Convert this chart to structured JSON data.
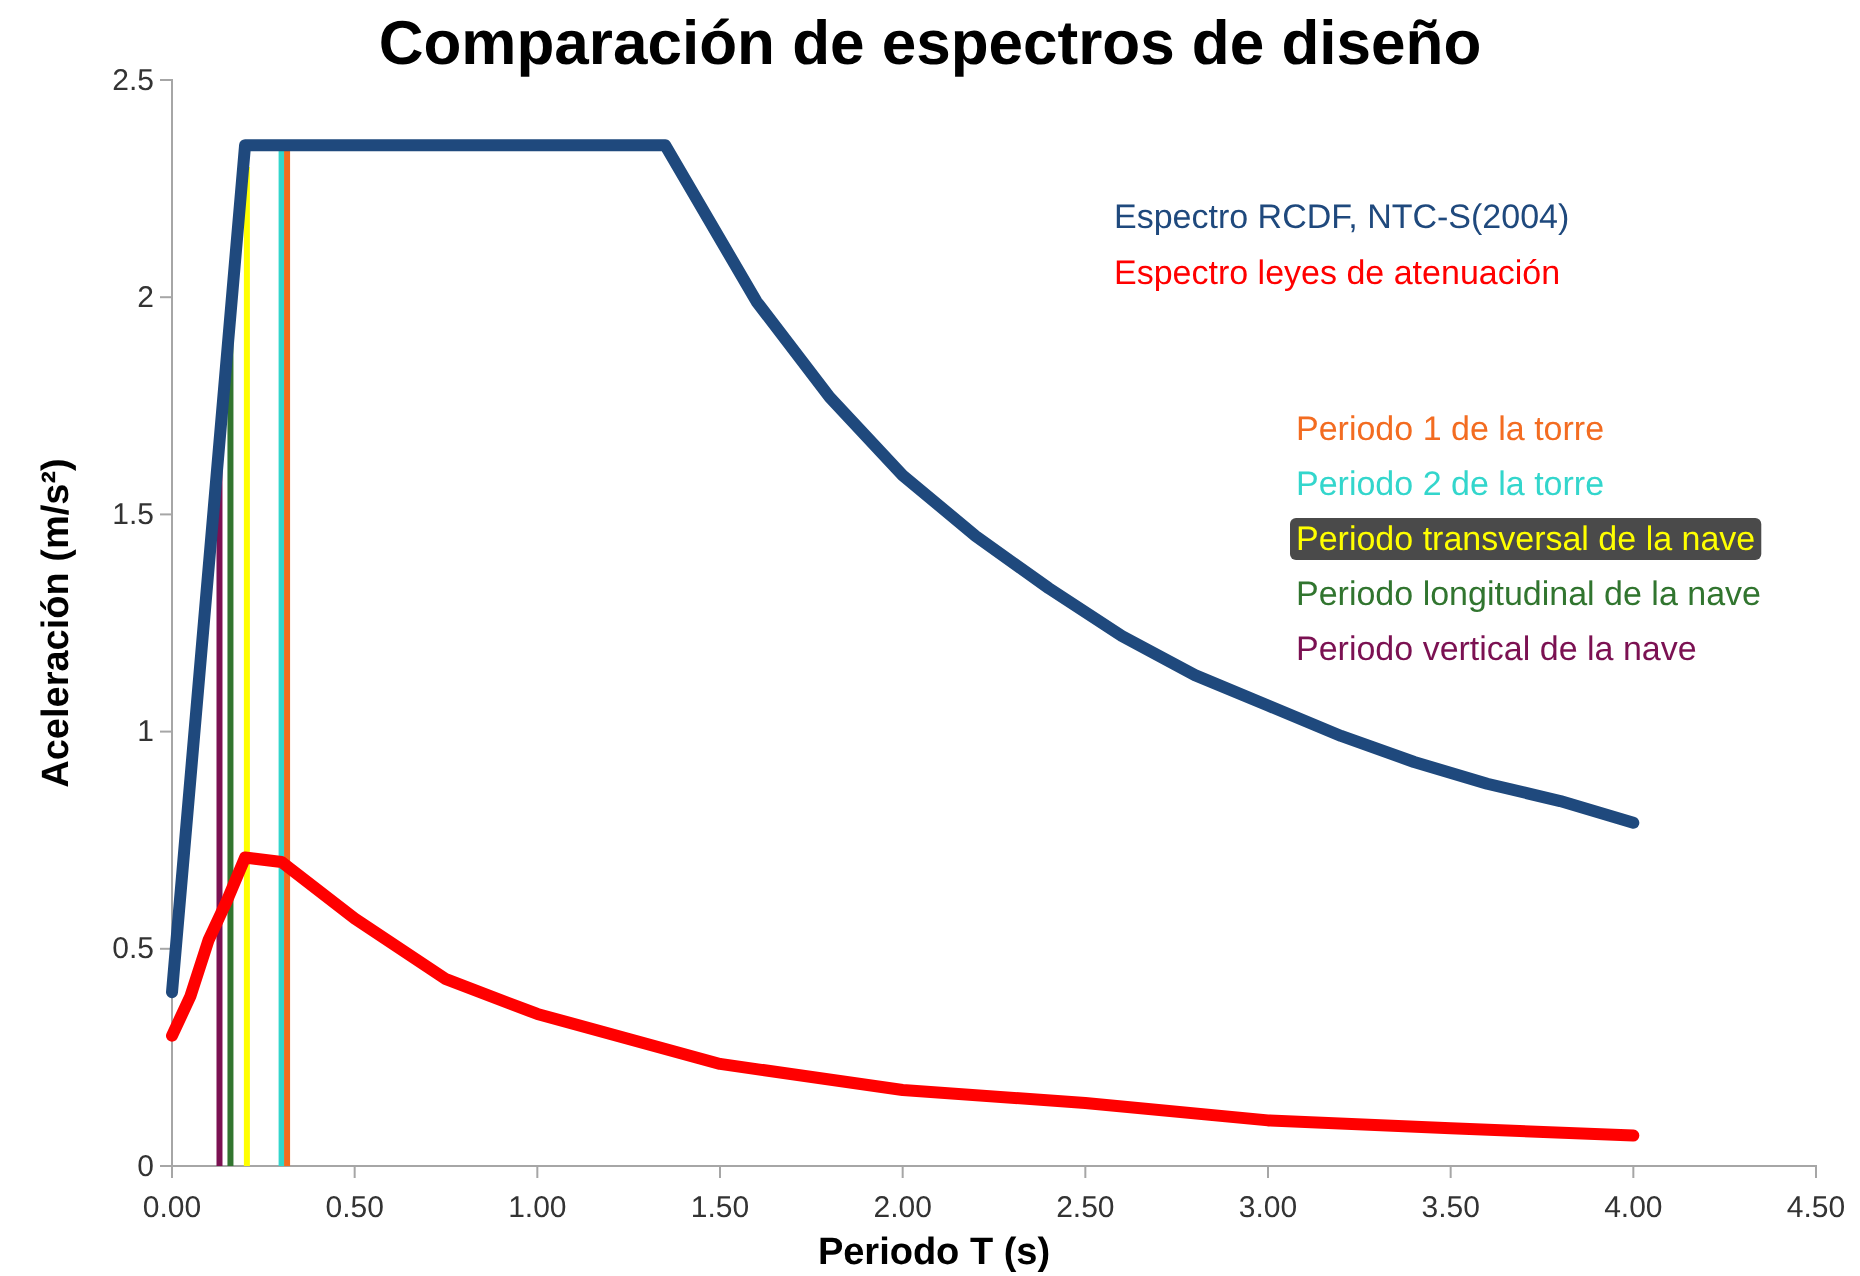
{
  "chart_data": {
    "type": "line",
    "title": "Comparación de espectros de diseño",
    "xlabel": "Periodo T (s)",
    "ylabel": "Aceleración (m/s²)",
    "xlim": [
      0,
      4.5
    ],
    "ylim": [
      0,
      2.5
    ],
    "xticks": [
      {
        "value": 0,
        "label": "0.00"
      },
      {
        "value": 0.5,
        "label": "0.50"
      },
      {
        "value": 1,
        "label": "1.00"
      },
      {
        "value": 1.5,
        "label": "1.50"
      },
      {
        "value": 2,
        "label": "2.00"
      },
      {
        "value": 2.5,
        "label": "2.50"
      },
      {
        "value": 3,
        "label": "3.00"
      },
      {
        "value": 3.5,
        "label": "3.50"
      },
      {
        "value": 4,
        "label": "4.00"
      },
      {
        "value": 4.5,
        "label": "4.50"
      }
    ],
    "yticks": [
      0,
      0.5,
      1,
      1.5,
      2,
      2.5
    ],
    "grid": false,
    "legend": "top right",
    "marker": "none",
    "line_style": "solid",
    "series": [
      {
        "name": "Espectro RCDF, NTC-S(2004)",
        "color": "#1f497d",
        "x": [
          0,
          0.2,
          1.35,
          1.6,
          1.8,
          2.0,
          2.2,
          2.4,
          2.6,
          2.8,
          3.0,
          3.2,
          3.4,
          3.6,
          3.8,
          4.0
        ],
        "values": [
          0.4,
          2.35,
          2.35,
          1.99,
          1.77,
          1.59,
          1.45,
          1.33,
          1.22,
          1.13,
          1.06,
          0.99,
          0.93,
          0.88,
          0.84,
          0.79
        ]
      },
      {
        "name": "Espectro leyes de atenuación",
        "color": "#ff0000",
        "x": [
          0,
          0.05,
          0.1,
          0.15,
          0.2,
          0.3,
          0.5,
          0.75,
          1.0,
          1.5,
          2.0,
          2.5,
          3.0,
          3.5,
          4.0
        ],
        "values": [
          0.3,
          0.39,
          0.52,
          0.61,
          0.71,
          0.7,
          0.57,
          0.43,
          0.35,
          0.235,
          0.175,
          0.145,
          0.105,
          0.087,
          0.07
        ]
      },
      {
        "name": "Periodo 1 de la torre",
        "color": "#f36c21",
        "x": [
          0.315,
          0.315
        ],
        "values": [
          0,
          2.35
        ]
      },
      {
        "name": "Periodo 2 de la torre",
        "color": "#33d6cc",
        "x": [
          0.3,
          0.3
        ],
        "values": [
          0,
          2.35
        ]
      },
      {
        "name": "Periodo transversal de la nave",
        "color": "#ffff00",
        "x": [
          0.205,
          0.205
        ],
        "values": [
          0,
          2.3
        ]
      },
      {
        "name": "Periodo longitudinal de la nave",
        "color": "#31752f",
        "x": [
          0.16,
          0.16
        ],
        "values": [
          0,
          1.9
        ]
      },
      {
        "name": "Periodo vertical de la nave",
        "color": "#7b1152",
        "x": [
          0.13,
          0.13
        ],
        "values": [
          0,
          1.6
        ]
      }
    ]
  }
}
